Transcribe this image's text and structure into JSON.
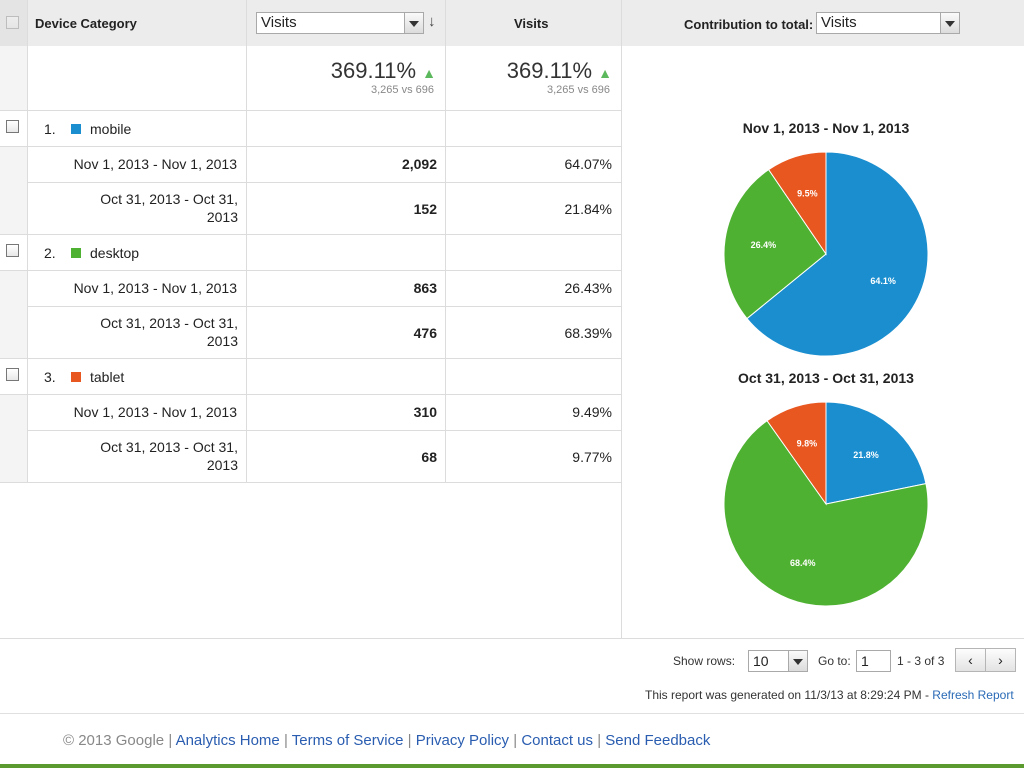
{
  "header": {
    "col1_label": "Device Category",
    "col2_select": "Visits",
    "col3_label": "Visits",
    "contribution_label": "Contribution to total:",
    "contribution_select": "Visits"
  },
  "totals": {
    "visits_change": "369.11%",
    "visits_compare": "3,265 vs 696",
    "contrib_change": "369.11%",
    "contrib_compare": "3,265 vs 696"
  },
  "rows": [
    {
      "num": "1.",
      "name": "mobile",
      "color": "#1a8ecf",
      "r1_date": "Nov 1, 2013 - Nov 1, 2013",
      "r1_val": "2,092",
      "r1_pct": "64.07%",
      "r2_date_a": "Oct 31, 2013 - Oct 31,",
      "r2_date_b": "2013",
      "r2_val": "152",
      "r2_pct": "21.84%"
    },
    {
      "num": "2.",
      "name": "desktop",
      "color": "#4fb132",
      "r1_date": "Nov 1, 2013 - Nov 1, 2013",
      "r1_val": "863",
      "r1_pct": "26.43%",
      "r2_date_a": "Oct 31, 2013 - Oct 31,",
      "r2_date_b": "2013",
      "r2_val": "476",
      "r2_pct": "68.39%"
    },
    {
      "num": "3.",
      "name": "tablet",
      "color": "#e8571f",
      "r1_date": "Nov 1, 2013 - Nov 1, 2013",
      "r1_val": "310",
      "r1_pct": "9.49%",
      "r2_date_a": "Oct 31, 2013 - Oct 31,",
      "r2_date_b": "2013",
      "r2_val": "68",
      "r2_pct": "9.77%"
    }
  ],
  "chart_data": [
    {
      "type": "pie",
      "title": "Nov 1, 2013 - Nov 1, 2013",
      "categories": [
        "mobile",
        "desktop",
        "tablet"
      ],
      "values": [
        64.1,
        26.4,
        9.5
      ],
      "labels": [
        "64.1%",
        "26.4%",
        "9.5%"
      ],
      "colors": [
        "#1a8ecf",
        "#4fb132",
        "#e8571f"
      ]
    },
    {
      "type": "pie",
      "title": "Oct 31, 2013 - Oct 31, 2013",
      "categories": [
        "mobile",
        "desktop",
        "tablet"
      ],
      "values": [
        21.8,
        68.4,
        9.8
      ],
      "labels": [
        "21.8%",
        "68.4%",
        "9.8%"
      ],
      "colors": [
        "#1a8ecf",
        "#4fb132",
        "#e8571f"
      ]
    }
  ],
  "pager": {
    "show_rows_label": "Show rows:",
    "show_rows_value": "10",
    "goto_label": "Go to:",
    "goto_value": "1",
    "range": "1 - 3 of 3",
    "prev_icon": "chevron-left-icon",
    "next_icon": "chevron-right-icon"
  },
  "generated": {
    "text": "This report was generated on 11/3/13 at 8:29:24 PM - ",
    "refresh": "Refresh Report"
  },
  "footer": {
    "copyright": "© 2013 Google",
    "sep": "|",
    "links": [
      "Analytics Home",
      "Terms of Service",
      "Privacy Policy",
      "Contact us",
      "Send Feedback"
    ]
  }
}
